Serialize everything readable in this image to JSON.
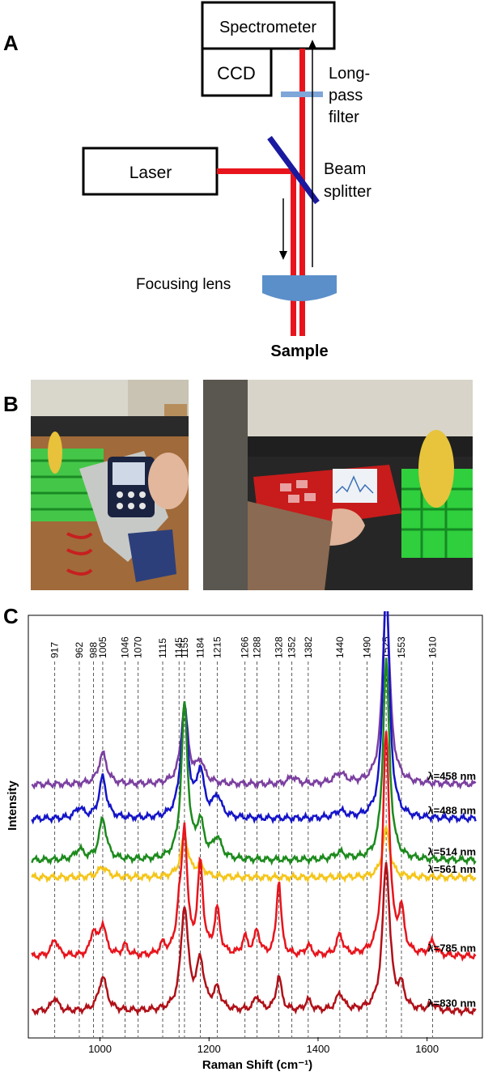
{
  "panels": {
    "a": {
      "letter": "A",
      "spectrometer": "Spectrometer",
      "ccd": "CCD",
      "laser": "Laser",
      "filter_line1": "Long-",
      "filter_line2": "pass",
      "filter_line3": "filter",
      "splitter_line1": "Beam",
      "splitter_line2": "splitter",
      "lens": "Focusing lens",
      "sample": "Sample"
    },
    "b": {
      "letter": "B"
    },
    "c": {
      "letter": "C"
    }
  },
  "colors": {
    "laser_red": "#e8141c",
    "splitter_blue": "#1a1aa0",
    "filter_blue": "#7ea6d8",
    "lens_blue": "#5b8fc9"
  },
  "chart_data": {
    "type": "line",
    "xlabel": "Raman Shift (cm⁻¹)",
    "ylabel": "Intensity",
    "xlim": [
      870,
      1700
    ],
    "x_ticks": [
      1000,
      1200,
      1400,
      1600
    ],
    "peak_markers": [
      917,
      962,
      988,
      1005,
      1046,
      1070,
      1115,
      1145,
      1155,
      1184,
      1215,
      1266,
      1288,
      1328,
      1352,
      1382,
      1440,
      1490,
      1525,
      1553,
      1610
    ],
    "series": [
      {
        "name": "λ=458 nm",
        "color": "#7b3fa0",
        "baseline": 0.72,
        "peaks": [
          [
            1005,
            0.09,
            9
          ],
          [
            1155,
            0.22,
            8
          ],
          [
            1184,
            0.06,
            9
          ],
          [
            1525,
            0.55,
            8
          ],
          [
            1440,
            0.03,
            12
          ],
          [
            1353,
            0.02,
            10
          ]
        ]
      },
      {
        "name": "λ=488 nm",
        "color": "#1414c8",
        "baseline": 0.62,
        "peaks": [
          [
            962,
            0.03,
            9
          ],
          [
            1005,
            0.12,
            8
          ],
          [
            1155,
            0.32,
            8
          ],
          [
            1184,
            0.13,
            8
          ],
          [
            1215,
            0.06,
            9
          ],
          [
            1525,
            0.7,
            7
          ],
          [
            1440,
            0.02,
            12
          ]
        ]
      },
      {
        "name": "λ=514 nm",
        "color": "#1c8a1c",
        "baseline": 0.5,
        "peaks": [
          [
            962,
            0.03,
            9
          ],
          [
            1005,
            0.12,
            8
          ],
          [
            1155,
            0.45,
            7
          ],
          [
            1184,
            0.1,
            8
          ],
          [
            1215,
            0.06,
            9
          ],
          [
            1525,
            0.58,
            7
          ],
          [
            1440,
            0.02,
            12
          ]
        ]
      },
      {
        "name": "λ=561 nm",
        "color": "#f5c518",
        "baseline": 0.45,
        "peaks": [
          [
            1005,
            0.03,
            10
          ],
          [
            1155,
            0.12,
            8
          ],
          [
            1184,
            0.03,
            9
          ],
          [
            1525,
            0.14,
            8
          ]
        ]
      },
      {
        "name": "λ=785 nm",
        "color": "#e8141c",
        "baseline": 0.22,
        "peaks": [
          [
            917,
            0.05,
            7
          ],
          [
            988,
            0.07,
            6
          ],
          [
            1005,
            0.09,
            7
          ],
          [
            1046,
            0.03,
            6
          ],
          [
            1115,
            0.03,
            6
          ],
          [
            1145,
            0.1,
            6
          ],
          [
            1155,
            0.35,
            6
          ],
          [
            1184,
            0.26,
            6
          ],
          [
            1215,
            0.13,
            6
          ],
          [
            1266,
            0.05,
            6
          ],
          [
            1288,
            0.07,
            6
          ],
          [
            1328,
            0.22,
            5
          ],
          [
            1382,
            0.03,
            6
          ],
          [
            1440,
            0.06,
            7
          ],
          [
            1525,
            0.65,
            7
          ],
          [
            1553,
            0.12,
            6
          ],
          [
            1610,
            0.04,
            7
          ]
        ]
      },
      {
        "name": "λ=830 nm",
        "color": "#b01018",
        "baseline": 0.06,
        "peaks": [
          [
            917,
            0.04,
            7
          ],
          [
            1005,
            0.1,
            9
          ],
          [
            1155,
            0.3,
            8
          ],
          [
            1184,
            0.14,
            8
          ],
          [
            1215,
            0.06,
            8
          ],
          [
            1288,
            0.04,
            7
          ],
          [
            1328,
            0.1,
            6
          ],
          [
            1382,
            0.03,
            7
          ],
          [
            1440,
            0.05,
            8
          ],
          [
            1525,
            0.43,
            8
          ],
          [
            1553,
            0.06,
            7
          ],
          [
            1610,
            0.02,
            8
          ]
        ]
      }
    ]
  }
}
